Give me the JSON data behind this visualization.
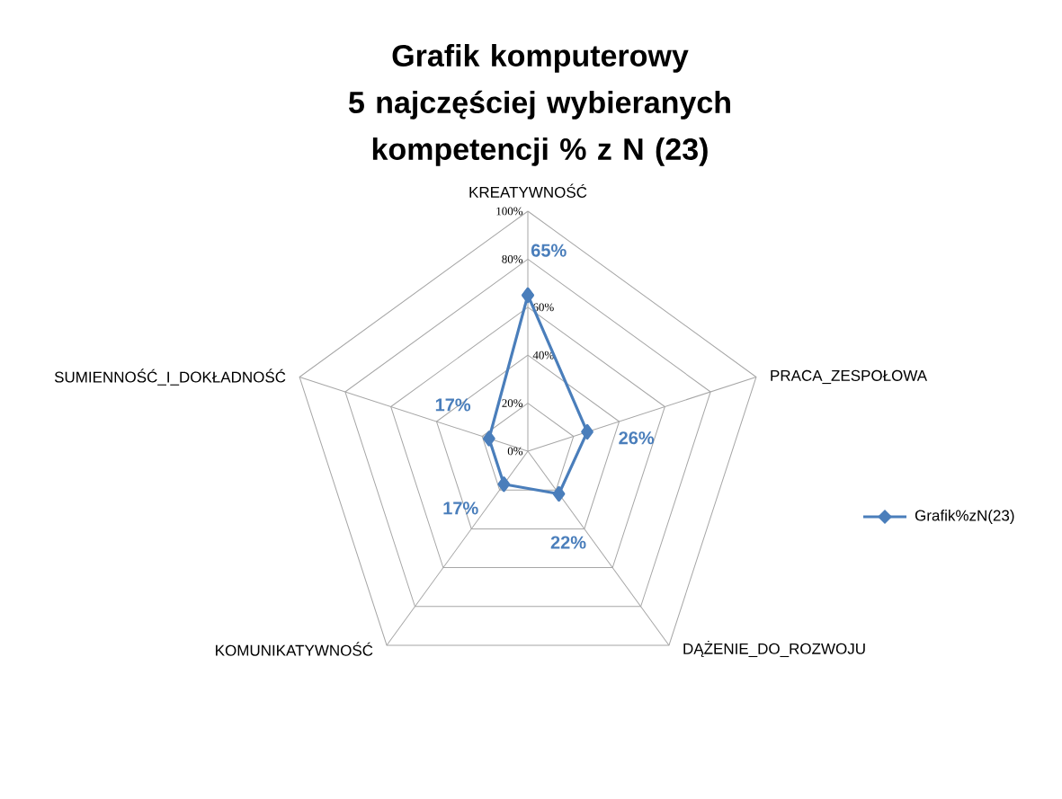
{
  "chart_data": {
    "type": "radar",
    "title": "Grafik komputerowy",
    "subtitle": "5 najczęściej wybieranych kompetencji % z N (23)",
    "categories": [
      "KREATYWNOŚĆ",
      "PRACA_ZESPOŁOWA",
      "DĄŻENIE_DO_ROZWOJU",
      "KOMUNIKATYWNOŚĆ",
      "SUMIENNOŚĆ_I_DOKŁADNOŚĆ"
    ],
    "series": [
      {
        "name": "Grafik%zN(23)",
        "color": "#4a7ebb",
        "values": [
          65,
          26,
          22,
          17,
          17
        ],
        "value_labels": [
          "65%",
          "26%",
          "22%",
          "17%",
          "17%"
        ]
      }
    ],
    "ylim": [
      0,
      100
    ],
    "yticks": [
      {
        "value": 0,
        "label": "0%"
      },
      {
        "value": 20,
        "label": "20%"
      },
      {
        "value": 40,
        "label": "40%"
      },
      {
        "value": 60,
        "label": "60%"
      },
      {
        "value": 80,
        "label": "80%"
      },
      {
        "value": 100,
        "label": "100%"
      }
    ],
    "grid": true,
    "legend": "right",
    "marker": "diamond",
    "line_style": "solid"
  }
}
